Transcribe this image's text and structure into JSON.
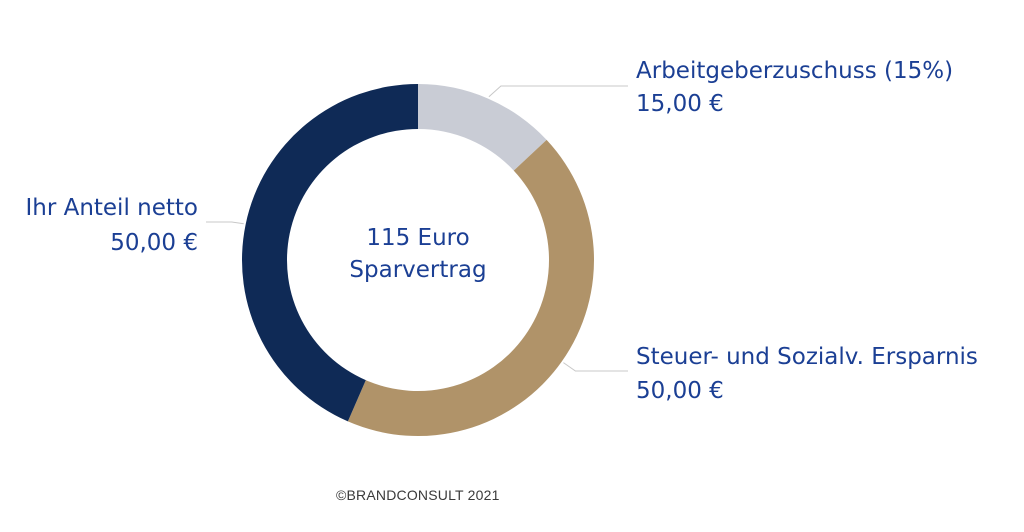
{
  "colors": {
    "label": "#1b3f94",
    "leader": "#c8c8c8"
  },
  "center": {
    "line1": "115 Euro",
    "line2": "Sparvertrag"
  },
  "copyright": "©BRANDCONSULT 2021",
  "chart_data": {
    "type": "pie",
    "variant": "donut",
    "total": 115,
    "slices": [
      {
        "label": "Arbeitgeberzuschuss (15%)",
        "value": 15,
        "value_text": "15,00 €",
        "color": "#c9ccd5"
      },
      {
        "label": "Steuer- und Sozialv. Ersparnis",
        "value": 50,
        "value_text": "50,00 €",
        "color": "#b09369"
      },
      {
        "label": "Ihr Anteil netto",
        "value": 50,
        "value_text": "50,00 €",
        "color": "#0f2a56"
      }
    ]
  }
}
